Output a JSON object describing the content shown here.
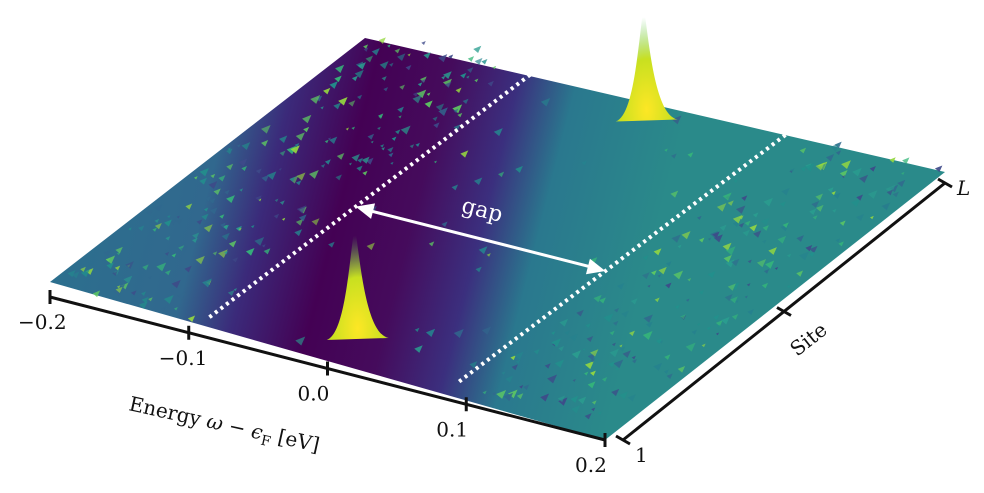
{
  "chart_data": {
    "type": "surface3d",
    "title": "",
    "colormap": "viridis",
    "x_axis": {
      "title_prefix": "Energy ",
      "title_symbol": "ω − ϵ",
      "title_sub": "F",
      "title_unit": " [eV]",
      "range": [
        -0.2,
        0.2
      ],
      "ticks": [
        -0.2,
        -0.1,
        0.0,
        0.1,
        0.2
      ],
      "tick_labels": [
        "−0.2",
        "−0.1",
        "0.0",
        "0.1",
        "0.2"
      ]
    },
    "y_axis": {
      "title": "Site",
      "tick_labels": [
        "1",
        "L"
      ]
    },
    "gap": {
      "label": "gap",
      "edges": [
        -0.09,
        0.09
      ]
    },
    "peaks": [
      {
        "energy": 0.0,
        "site_fraction": 0.08,
        "relative_height": 1.0
      },
      {
        "energy": 0.0,
        "site_fraction": 0.93,
        "relative_height": 1.0
      }
    ],
    "colors": {
      "low": "#440154",
      "mid": "#21918c",
      "high": "#fde725",
      "gap_marker": "#ffffff",
      "axis": "#111111"
    }
  }
}
